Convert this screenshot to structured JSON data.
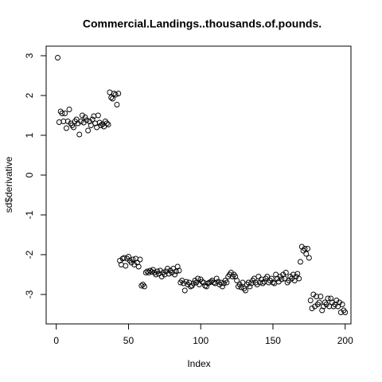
{
  "chart_data": {
    "type": "scatter",
    "title": "Commercial.Landings..thousands.of.pounds.",
    "x_label": "Index",
    "y_label": "sd$derivative",
    "color": "#000000",
    "xlim": [
      -7,
      204
    ],
    "ylim": [
      -3.74,
      3.24
    ],
    "xticks": [
      0,
      50,
      100,
      150,
      200
    ],
    "yticks": [
      -3,
      -2,
      -1,
      0,
      1,
      2,
      3
    ],
    "x": [
      1,
      2,
      3,
      4,
      5,
      6,
      7,
      8,
      9,
      10,
      11,
      12,
      13,
      14,
      15,
      16,
      17,
      18,
      19,
      20,
      21,
      22,
      23,
      24,
      25,
      26,
      27,
      28,
      29,
      30,
      31,
      32,
      33,
      34,
      35,
      36,
      37,
      38,
      39,
      40,
      41,
      42,
      43,
      44,
      45,
      46,
      47,
      48,
      49,
      50,
      51,
      52,
      53,
      54,
      55,
      56,
      57,
      58,
      59,
      60,
      61,
      62,
      63,
      64,
      65,
      66,
      67,
      68,
      69,
      70,
      71,
      72,
      73,
      74,
      75,
      76,
      77,
      78,
      79,
      80,
      81,
      82,
      83,
      84,
      85,
      86,
      87,
      88,
      89,
      90,
      91,
      92,
      93,
      94,
      95,
      96,
      97,
      98,
      99,
      100,
      101,
      102,
      103,
      104,
      105,
      106,
      107,
      108,
      109,
      110,
      111,
      112,
      113,
      114,
      115,
      116,
      117,
      118,
      119,
      120,
      121,
      122,
      123,
      124,
      125,
      126,
      127,
      128,
      129,
      130,
      131,
      132,
      133,
      134,
      135,
      136,
      137,
      138,
      139,
      140,
      141,
      142,
      143,
      144,
      145,
      146,
      147,
      148,
      149,
      150,
      151,
      152,
      153,
      154,
      155,
      156,
      157,
      158,
      159,
      160,
      161,
      162,
      163,
      164,
      165,
      166,
      167,
      168,
      169,
      170,
      171,
      172,
      173,
      174,
      175,
      176,
      177,
      178,
      179,
      180,
      181,
      182,
      183,
      184,
      185,
      186,
      187,
      188,
      189,
      190,
      191,
      192,
      193,
      194,
      195,
      196,
      197,
      198,
      199,
      200
    ],
    "values": [
      2.95,
      1.33,
      1.6,
      1.55,
      1.35,
      1.55,
      1.18,
      1.35,
      1.65,
      1.3,
      1.25,
      1.2,
      1.35,
      1.4,
      1.3,
      1.02,
      1.35,
      1.5,
      1.32,
      1.45,
      1.38,
      1.12,
      1.35,
      1.25,
      1.4,
      1.48,
      1.3,
      1.2,
      1.5,
      1.32,
      1.25,
      1.28,
      1.22,
      1.35,
      1.3,
      1.27,
      2.08,
      1.95,
      1.92,
      2.05,
      2.02,
      1.77,
      2.05,
      -2.15,
      -2.25,
      -2.1,
      -2.08,
      -2.28,
      -2.1,
      -2.05,
      -2.15,
      -2.2,
      -2.12,
      -2.25,
      -2.1,
      -2.2,
      -2.3,
      -2.12,
      -2.78,
      -2.75,
      -2.8,
      -2.45,
      -2.42,
      -2.45,
      -2.4,
      -2.43,
      -2.38,
      -2.45,
      -2.5,
      -2.42,
      -2.48,
      -2.4,
      -2.55,
      -2.45,
      -2.5,
      -2.42,
      -2.35,
      -2.48,
      -2.4,
      -2.45,
      -2.35,
      -2.5,
      -2.42,
      -2.3,
      -2.4,
      -2.7,
      -2.65,
      -2.72,
      -2.9,
      -2.68,
      -2.75,
      -2.7,
      -2.8,
      -2.78,
      -2.72,
      -2.65,
      -2.7,
      -2.6,
      -2.75,
      -2.62,
      -2.68,
      -2.7,
      -2.78,
      -2.8,
      -2.72,
      -2.7,
      -2.68,
      -2.65,
      -2.7,
      -2.72,
      -2.6,
      -2.68,
      -2.75,
      -2.7,
      -2.8,
      -2.72,
      -2.65,
      -2.7,
      -2.55,
      -2.5,
      -2.45,
      -2.55,
      -2.5,
      -2.55,
      -2.65,
      -2.8,
      -2.75,
      -2.82,
      -2.7,
      -2.85,
      -2.9,
      -2.75,
      -2.7,
      -2.8,
      -2.72,
      -2.65,
      -2.6,
      -2.7,
      -2.75,
      -2.55,
      -2.7,
      -2.62,
      -2.72,
      -2.68,
      -2.6,
      -2.55,
      -2.7,
      -2.65,
      -2.6,
      -2.7,
      -2.72,
      -2.5,
      -2.6,
      -2.68,
      -2.55,
      -2.62,
      -2.5,
      -2.6,
      -2.45,
      -2.7,
      -2.65,
      -2.55,
      -2.6,
      -2.5,
      -2.65,
      -2.55,
      -2.48,
      -2.6,
      -2.18,
      -1.8,
      -1.9,
      -1.85,
      -1.98,
      -1.85,
      -2.08,
      -3.15,
      -3.35,
      -3.0,
      -3.3,
      -3.05,
      -3.25,
      -3.2,
      -3.05,
      -3.4,
      -3.3,
      -3.2,
      -3.25,
      -3.1,
      -3.3,
      -3.1,
      -3.2,
      -3.3,
      -3.25,
      -3.15,
      -3.3,
      -3.2,
      -3.45,
      -3.25,
      -3.4,
      -3.45
    ]
  }
}
